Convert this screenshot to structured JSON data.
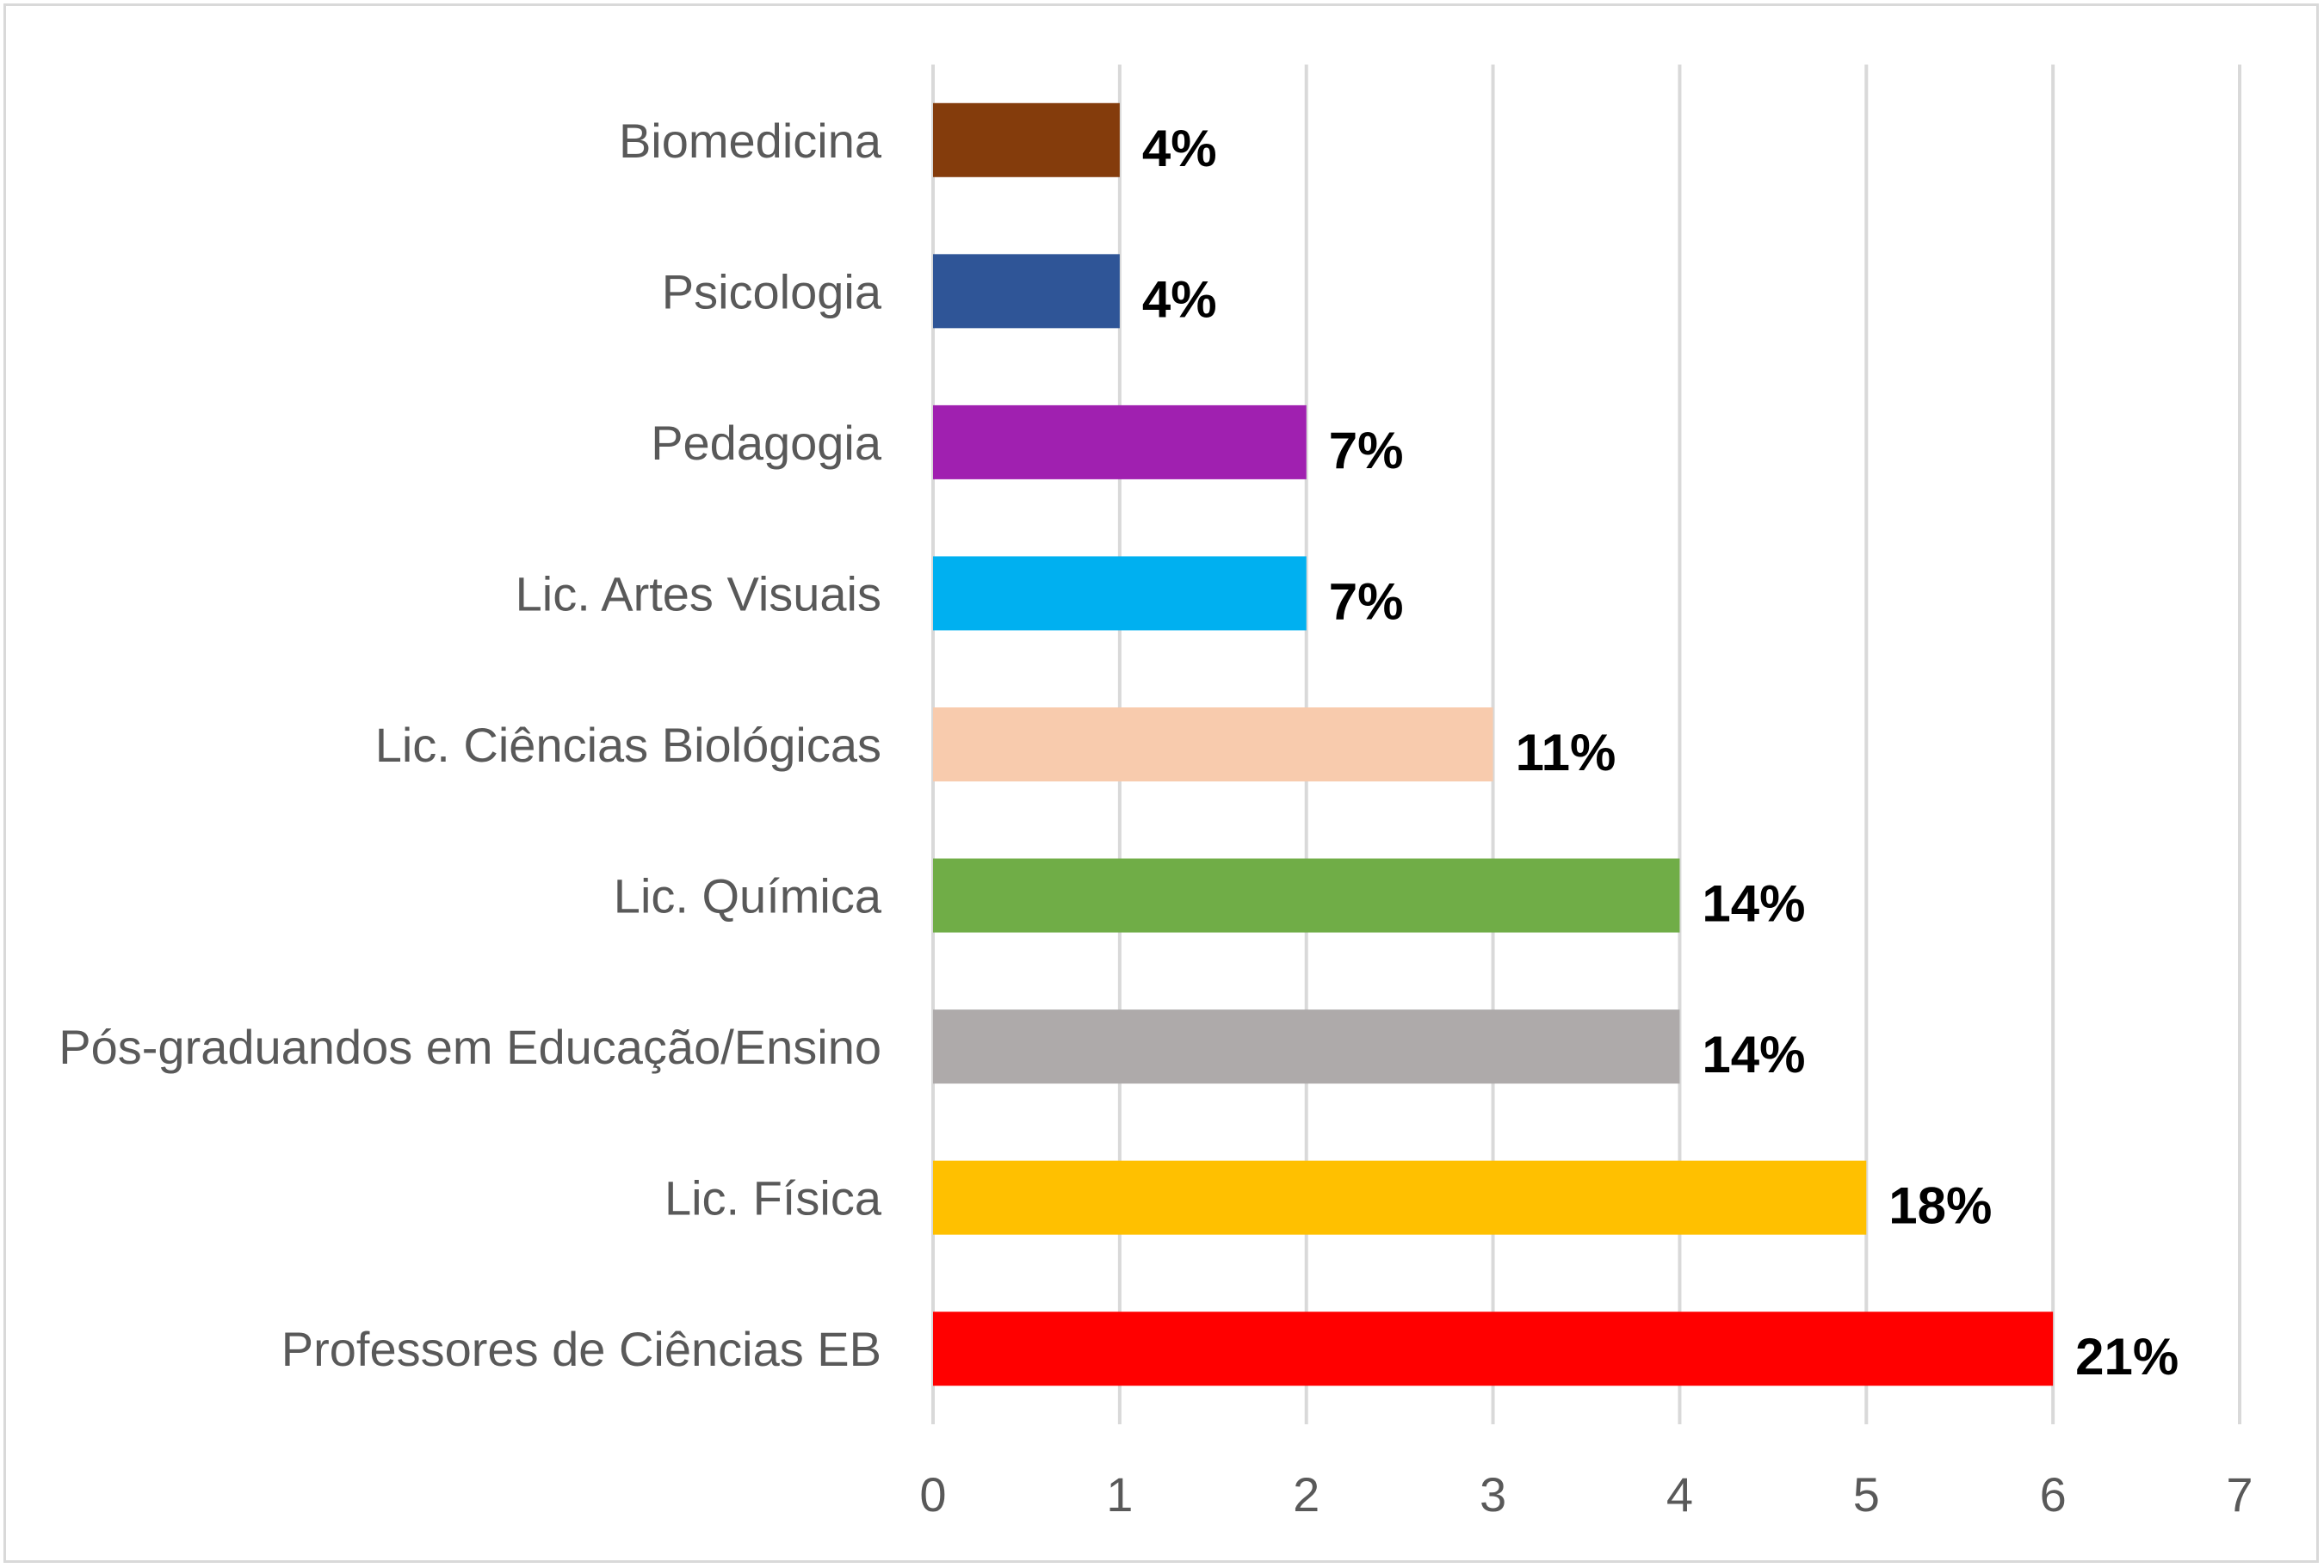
{
  "chart_data": {
    "type": "bar",
    "orientation": "horizontal",
    "categories": [
      "Biomedicina",
      "Psicologia",
      "Pedagogia",
      "Lic. Artes Visuais",
      "Lic. Ciências Biológicas",
      "Lic. Química",
      "Pós-graduandos em Educação/Ensino",
      "Lic. Física",
      "Professores de Ciências EB"
    ],
    "values": [
      1,
      1,
      2,
      2,
      3,
      4,
      4,
      5,
      6
    ],
    "data_labels": [
      "4%",
      "4%",
      "7%",
      "7%",
      "11%",
      "14%",
      "14%",
      "18%",
      "21%"
    ],
    "colors": [
      "#843c0c",
      "#2f5597",
      "#a020b0",
      "#00b0f0",
      "#f8cbad",
      "#70ad47",
      "#aeaaaa",
      "#ffc000",
      "#ff0000"
    ],
    "xlim": [
      0,
      7
    ],
    "x_ticks": [
      "0",
      "1",
      "2",
      "3",
      "4",
      "5",
      "6",
      "7"
    ],
    "grid": true,
    "legend": "none"
  }
}
